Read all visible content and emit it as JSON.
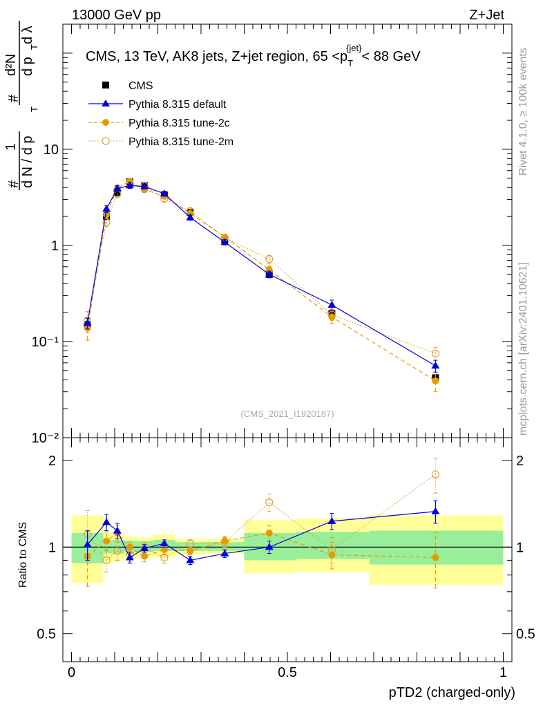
{
  "header": {
    "left": "13000 GeV pp",
    "right": "Z+Jet"
  },
  "side_labels": {
    "rivet": "Rivet 4.1.0, ≥ 100k events",
    "mcplots": "mcplots.cern.ch [arXiv:2401.10621]"
  },
  "colors": {
    "cms": "#000000",
    "default": "#0000dd",
    "tune2c": "#e59b00",
    "tune2m": "#e0a030",
    "band_inner": "#99ee99",
    "band_outer": "#ffff99"
  },
  "chart_data": [
    {
      "type": "line",
      "panel": "main",
      "title": "CMS, 13 TeV, AK8 jets, Z+jet region, 65 <p_T^{jet}< 88 GeV",
      "title_parts": {
        "main": "CMS, 13 TeV, AK8 jets, Z+jet region, 65 <p",
        "sup": "{jet}",
        "sub": "T",
        "tail": "< 88 GeV"
      },
      "ylabel": "1/N dN/dp_T dλ",
      "ylabel_parts": {
        "hash": "#",
        "one": "1",
        "dn": "d N / d p",
        "t": "T",
        "d2n": "d²N",
        "dpt": "d p",
        "dl": "d λ"
      },
      "yscale": "log",
      "ylim": [
        0.01,
        200
      ],
      "xlim": [
        -0.02,
        1.02
      ],
      "y_tick_labels": [
        "10⁻²",
        "10⁻¹",
        "1",
        "10"
      ],
      "y_tick_values": [
        0.01,
        0.1,
        1,
        10
      ],
      "watermark": "(CMS_2021_I1920187)",
      "legend_position": "top-left",
      "series": [
        {
          "name": "CMS",
          "style": "marker-square",
          "x": [
            0.037,
            0.081,
            0.106,
            0.135,
            0.169,
            0.215,
            0.275,
            0.355,
            0.458,
            0.603,
            0.843
          ],
          "y": [
            0.15,
            2.0,
            3.55,
            4.6,
            4.2,
            3.35,
            2.2,
            1.15,
            0.5,
            0.195,
            0.042
          ]
        },
        {
          "name": "Pythia 8.315 default",
          "style": "solid-triangle",
          "x": [
            0.037,
            0.081,
            0.106,
            0.135,
            0.169,
            0.215,
            0.275,
            0.355,
            0.458,
            0.603,
            0.843
          ],
          "y": [
            0.155,
            2.4,
            3.9,
            4.2,
            4.1,
            3.45,
            1.95,
            1.08,
            0.5,
            0.24,
            0.056
          ],
          "yerr": [
            0.02,
            0.2,
            0.3,
            0.3,
            0.25,
            0.2,
            0.12,
            0.07,
            0.04,
            0.03,
            0.008
          ]
        },
        {
          "name": "Pythia 8.315 tune-2c",
          "style": "dashed-dot",
          "x": [
            0.037,
            0.081,
            0.106,
            0.135,
            0.169,
            0.215,
            0.275,
            0.355,
            0.458,
            0.603,
            0.843
          ],
          "y": [
            0.138,
            2.1,
            3.95,
            4.65,
            3.8,
            3.25,
            2.15,
            1.22,
            0.56,
            0.18,
            0.039
          ],
          "yerr": [
            0.035,
            0.2,
            0.3,
            0.3,
            0.25,
            0.2,
            0.12,
            0.07,
            0.05,
            0.025,
            0.009
          ]
        },
        {
          "name": "Pythia 8.315 tune-2m",
          "style": "dotted-circle",
          "x": [
            0.037,
            0.081,
            0.106,
            0.135,
            0.169,
            0.215,
            0.275,
            0.355,
            0.458,
            0.603,
            0.843
          ],
          "y": [
            0.165,
            1.75,
            3.45,
            4.3,
            4.2,
            3.05,
            2.28,
            1.2,
            0.72,
            0.19,
            0.075
          ],
          "yerr": [
            0.04,
            0.18,
            0.3,
            0.3,
            0.25,
            0.2,
            0.12,
            0.07,
            0.07,
            0.025,
            0.012
          ]
        }
      ]
    },
    {
      "type": "line",
      "panel": "ratio",
      "ylabel": "Ratio to CMS",
      "xlabel": "pTD2 (charged-only)",
      "yscale": "log",
      "ylim": [
        0.4,
        2.4
      ],
      "xlim": [
        -0.02,
        1.02
      ],
      "x_tick_labels": [
        "0",
        "0.5",
        "1"
      ],
      "x_tick_values": [
        0,
        0.5,
        1
      ],
      "y_tick_labels": [
        "0.5",
        "1",
        "2"
      ],
      "y_tick_values": [
        0.5,
        1,
        2
      ],
      "bins": [
        0,
        0.074,
        0.094,
        0.121,
        0.152,
        0.189,
        0.24,
        0.31,
        0.4,
        0.52,
        0.69,
        1.0
      ],
      "band_inner": {
        "lo": [
          0.88,
          0.95,
          0.95,
          0.96,
          0.96,
          0.97,
          0.97,
          0.97,
          0.9,
          0.91,
          0.87
        ],
        "hi": [
          1.12,
          1.06,
          1.06,
          1.05,
          1.05,
          1.06,
          1.04,
          1.04,
          1.12,
          1.13,
          1.14
        ]
      },
      "band_outer": {
        "lo": [
          0.75,
          0.88,
          0.89,
          0.91,
          0.92,
          0.92,
          0.94,
          0.95,
          0.81,
          0.82,
          0.74
        ],
        "hi": [
          1.29,
          1.13,
          1.13,
          1.09,
          1.08,
          1.11,
          1.07,
          1.07,
          1.24,
          1.26,
          1.29
        ]
      },
      "series": [
        {
          "name": "Pythia 8.315 default",
          "x": [
            0.037,
            0.081,
            0.106,
            0.135,
            0.169,
            0.215,
            0.275,
            0.355,
            0.458,
            0.603,
            0.843
          ],
          "y": [
            1.02,
            1.22,
            1.14,
            0.92,
            0.99,
            1.03,
            0.9,
            0.95,
            1.0,
            1.23,
            1.33
          ],
          "yerr": [
            0.12,
            0.08,
            0.07,
            0.04,
            0.03,
            0.03,
            0.03,
            0.03,
            0.05,
            0.08,
            0.12
          ]
        },
        {
          "name": "Pythia 8.315 tune-2c",
          "x": [
            0.037,
            0.081,
            0.106,
            0.135,
            0.169,
            0.215,
            0.275,
            0.355,
            0.458,
            0.603,
            0.843
          ],
          "y": [
            0.93,
            1.05,
            1.12,
            1.0,
            0.93,
            0.98,
            0.97,
            1.05,
            1.12,
            0.94,
            0.92
          ],
          "yerr": [
            0.2,
            0.08,
            0.07,
            0.05,
            0.04,
            0.04,
            0.03,
            0.04,
            0.07,
            0.1,
            0.2
          ]
        },
        {
          "name": "Pythia 8.315 tune-2m",
          "x": [
            0.037,
            0.081,
            0.106,
            0.135,
            0.169,
            0.215,
            0.275,
            0.355,
            0.458,
            0.603,
            0.843
          ],
          "y": [
            1.11,
            0.9,
            0.97,
            0.94,
            1.0,
            0.92,
            1.03,
            1.04,
            1.43,
            0.98,
            1.79
          ],
          "yerr": [
            0.23,
            0.08,
            0.07,
            0.05,
            0.04,
            0.04,
            0.03,
            0.04,
            0.1,
            0.1,
            0.25
          ]
        }
      ]
    }
  ]
}
